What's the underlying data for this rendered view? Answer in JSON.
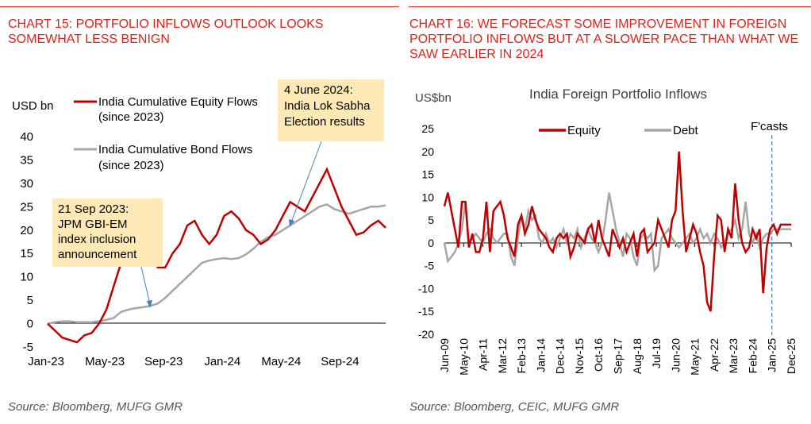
{
  "colors": {
    "accent": "#d9251c",
    "equity": "#c00000",
    "bond": "#a6a6a6",
    "callout_bg": "#fde9b5",
    "arrow": "#4a7ebb",
    "forecast_line": "#4a7ebb"
  },
  "left": {
    "title": "CHART 15: PORTFOLIO INFLOWS OUTLOOK LOOKS SOMEWHAT LESS BENIGN",
    "source": "Source: Bloomberg, MUFG GMR",
    "chart_data": {
      "type": "line",
      "ylabel": "USD bn",
      "ylim": [
        -5,
        40
      ],
      "yticks": [
        "-5",
        "0",
        "5",
        "10",
        "15",
        "20",
        "25",
        "30",
        "35",
        "40"
      ],
      "xtick_labels": [
        "Jan-23",
        "May-23",
        "Sep-23",
        "Jan-24",
        "May-24",
        "Sep-24"
      ],
      "x_months": [
        0,
        0.5,
        1,
        1.5,
        2,
        2.5,
        3,
        3.5,
        4,
        4.5,
        5,
        5.5,
        6,
        6.5,
        7,
        7.5,
        8,
        8.5,
        9,
        9.5,
        10,
        10.5,
        11,
        11.5,
        12,
        12.5,
        13,
        13.5,
        14,
        14.5,
        15,
        15.5,
        16,
        16.5,
        17,
        17.5,
        18,
        18.5,
        19,
        19.5,
        20,
        20.5,
        21,
        21.5,
        22,
        22.5,
        23
      ],
      "series": [
        {
          "name": "India Cumulative Equity Flows (since 2023)",
          "label_line1": "India Cumulative Equity Flows",
          "label_line2": "(since 2023)",
          "values": [
            0,
            -1.5,
            -3,
            -3.5,
            -4,
            -2.5,
            -2,
            0,
            3,
            8,
            13,
            15.5,
            17,
            16,
            14,
            12,
            12,
            15,
            17,
            21,
            22,
            19,
            17,
            19,
            23,
            24,
            22.5,
            20,
            19,
            17,
            18,
            20,
            23,
            26,
            25,
            24,
            27,
            30,
            33,
            29,
            25,
            22,
            19,
            19.5,
            21,
            22,
            20.5
          ]
        },
        {
          "name": "India Cumulative Bond Flows (since 2023)",
          "label_line1": "India Cumulative Bond Flows",
          "label_line2": "(since 2023)",
          "values": [
            0,
            0.3,
            0.5,
            0.5,
            0.3,
            0.3,
            0.3,
            0.5,
            0.8,
            1.2,
            2.5,
            3,
            3.3,
            3.5,
            3.8,
            4.3,
            5.5,
            7,
            8.5,
            10,
            11.5,
            13,
            13.5,
            13.8,
            14,
            13.8,
            14,
            14.8,
            16,
            17.5,
            18.5,
            19,
            20,
            21,
            22,
            23,
            24,
            25,
            25.5,
            24.5,
            24,
            23.5,
            24,
            24.5,
            25,
            25,
            25.3
          ]
        }
      ],
      "annotations": [
        {
          "line1": "21 Sep 2023:",
          "line2": "JPM GBI-EM",
          "line3": "index inclusion",
          "line4": "announcement"
        },
        {
          "line1": "4 June 2024:",
          "line2": "India Lok Sabha",
          "line3": "Election results"
        }
      ]
    }
  },
  "right": {
    "title": "CHART 16: WE FORECAST SOME IMPROVEMENT IN FOREIGN PORTFOLIO INFLOWS BUT AT A SLOWER PACE THAN WHAT WE SAW EARLIER IN 2024",
    "source": "Source: Bloomberg, CEIC, MUFG GMR",
    "chart_data": {
      "type": "line",
      "title": "India Foreign Portfolio Inflows",
      "ylabel": "US$bn",
      "ylim": [
        -20,
        25
      ],
      "yticks": [
        "-20",
        "-15",
        "-10",
        "-5",
        "0",
        "5",
        "10",
        "15",
        "20",
        "25"
      ],
      "xtick_labels": [
        "Jun-09",
        "May-10",
        "Apr-11",
        "Mar-12",
        "Feb-13",
        "Jan-14",
        "Dec-14",
        "Nov-15",
        "Oct-16",
        "Sep-17",
        "Aug-18",
        "Jul-19",
        "Jun-20",
        "May-21",
        "Apr-22",
        "Mar-23",
        "Feb-24",
        "Jan-25",
        "Dec-25"
      ],
      "x_range_months": [
        0,
        198
      ],
      "forecast_marker": {
        "label": "F'casts",
        "x_month": 187
      },
      "series": [
        {
          "name": "Equity",
          "x_months": [
            0,
            2,
            4,
            6,
            8,
            10,
            12,
            14,
            16,
            18,
            20,
            22,
            24,
            26,
            28,
            30,
            32,
            34,
            36,
            38,
            40,
            42,
            44,
            46,
            48,
            50,
            52,
            54,
            56,
            58,
            60,
            62,
            64,
            66,
            68,
            70,
            72,
            74,
            76,
            78,
            80,
            82,
            84,
            86,
            88,
            90,
            92,
            94,
            96,
            98,
            100,
            102,
            104,
            106,
            108,
            110,
            112,
            114,
            116,
            118,
            120,
            122,
            124,
            126,
            128,
            130,
            132,
            134,
            136,
            138,
            140,
            142,
            144,
            146,
            148,
            150,
            152,
            154,
            156,
            158,
            160,
            162,
            164,
            166,
            168,
            170,
            172,
            174,
            176,
            178,
            180,
            182,
            184,
            186,
            188,
            190,
            192,
            194,
            196,
            198
          ],
          "values": [
            8,
            11,
            7,
            3,
            -1,
            9,
            9,
            -1,
            2,
            -2,
            -2,
            1,
            9,
            -2,
            7,
            8,
            9,
            6,
            1,
            -1,
            -3,
            4,
            6,
            2,
            4,
            8,
            5,
            3,
            2,
            1,
            -1,
            -2,
            1,
            2,
            1,
            2,
            -3,
            -1,
            2,
            1,
            0,
            3,
            4,
            0,
            5,
            1,
            -1,
            -3,
            3,
            1,
            -1,
            1,
            -2,
            0,
            2,
            -3,
            2,
            3,
            -2,
            -1,
            0,
            5,
            3,
            1,
            -1,
            5,
            7,
            20,
            7,
            -2,
            1,
            4,
            2,
            -2,
            -5,
            -13,
            -15,
            -3,
            6,
            5,
            -2,
            3,
            1,
            13,
            5,
            0,
            -2,
            -1,
            3,
            1,
            3,
            -11,
            -1,
            3,
            4,
            2,
            4,
            4,
            4,
            4
          ]
        },
        {
          "name": "Debt",
          "x_months": [
            0,
            2,
            4,
            6,
            8,
            10,
            12,
            14,
            16,
            18,
            20,
            22,
            24,
            26,
            28,
            30,
            32,
            34,
            36,
            38,
            40,
            42,
            44,
            46,
            48,
            50,
            52,
            54,
            56,
            58,
            60,
            62,
            64,
            66,
            68,
            70,
            72,
            74,
            76,
            78,
            80,
            82,
            84,
            86,
            88,
            90,
            92,
            94,
            96,
            98,
            100,
            102,
            104,
            106,
            108,
            110,
            112,
            114,
            116,
            118,
            120,
            122,
            124,
            126,
            128,
            130,
            132,
            134,
            136,
            138,
            140,
            142,
            144,
            146,
            148,
            150,
            152,
            154,
            156,
            158,
            160,
            162,
            164,
            166,
            168,
            170,
            172,
            174,
            176,
            178,
            180,
            182,
            184,
            186,
            188,
            190,
            192,
            194,
            196,
            198
          ],
          "values": [
            0,
            -4,
            -3,
            -2,
            0,
            3,
            9,
            0,
            1,
            2,
            1,
            0,
            2,
            3,
            1,
            0,
            1,
            2,
            2,
            -3,
            -5,
            1,
            6,
            3,
            7,
            5,
            6,
            1,
            0,
            2,
            0,
            1,
            -1,
            1,
            3,
            0,
            2,
            1,
            3,
            -1,
            1,
            3,
            1,
            0,
            -2,
            0,
            5,
            11,
            7,
            3,
            0,
            -3,
            2,
            1,
            -3,
            -5,
            1,
            2,
            1,
            2,
            -6,
            -5,
            1,
            2,
            3,
            1,
            0,
            -1,
            0,
            1,
            2,
            0,
            1,
            3,
            1,
            2,
            0,
            2,
            1,
            -1,
            0,
            2,
            3,
            5,
            1,
            3,
            9,
            2,
            0,
            2,
            -1,
            1,
            2,
            2,
            3,
            3,
            3,
            3,
            3,
            3
          ]
        }
      ]
    }
  }
}
